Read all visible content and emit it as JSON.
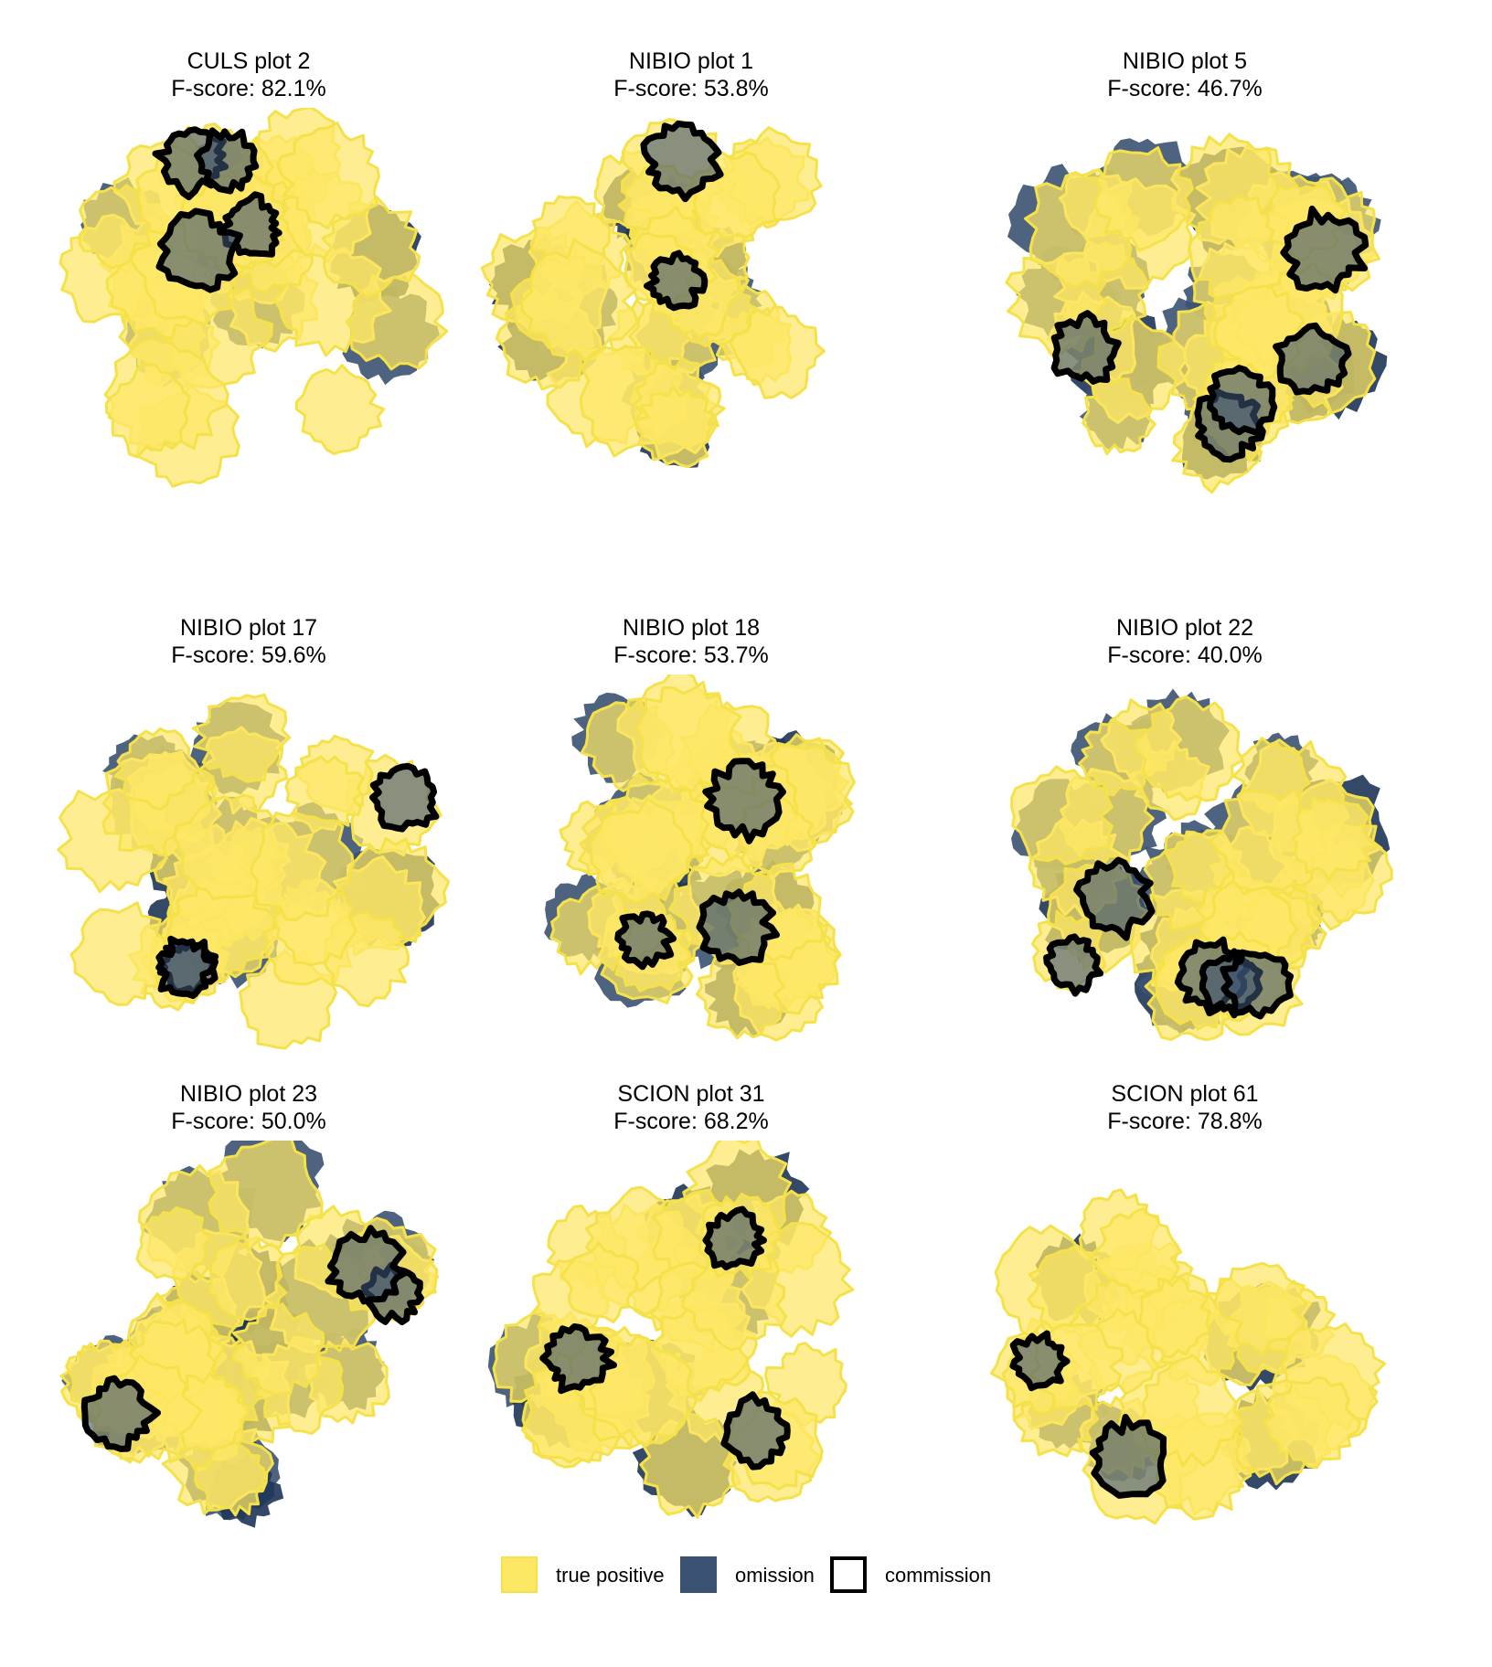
{
  "colors": {
    "true_positive_fill": "#fde866",
    "true_positive_stroke": "#f5e14a",
    "omission_fill": "#3b5272",
    "omission_dark": "#1e3556",
    "commission_stroke": "#000000"
  },
  "panels": [
    {
      "name": "CULS plot 2",
      "fscore_text": "F-score: 82.1%"
    },
    {
      "name": "NIBIO plot 1",
      "fscore_text": "F-score: 53.8%"
    },
    {
      "name": "NIBIO plot 5",
      "fscore_text": "F-score: 46.7%"
    },
    {
      "name": "NIBIO plot 17",
      "fscore_text": "F-score: 59.6%"
    },
    {
      "name": "NIBIO plot 18",
      "fscore_text": "F-score: 53.7%"
    },
    {
      "name": "NIBIO plot 22",
      "fscore_text": "F-score: 40.0%"
    },
    {
      "name": "NIBIO plot 23",
      "fscore_text": "F-score: 50.0%"
    },
    {
      "name": "SCION plot 31",
      "fscore_text": "F-score: 68.2%"
    },
    {
      "name": "SCION plot 61",
      "fscore_text": "F-score: 78.8%"
    }
  ],
  "legend": {
    "items": [
      {
        "key": "true_positive",
        "label": "true positive"
      },
      {
        "key": "omission",
        "label": "omission"
      },
      {
        "key": "commission",
        "label": "commission"
      }
    ]
  }
}
